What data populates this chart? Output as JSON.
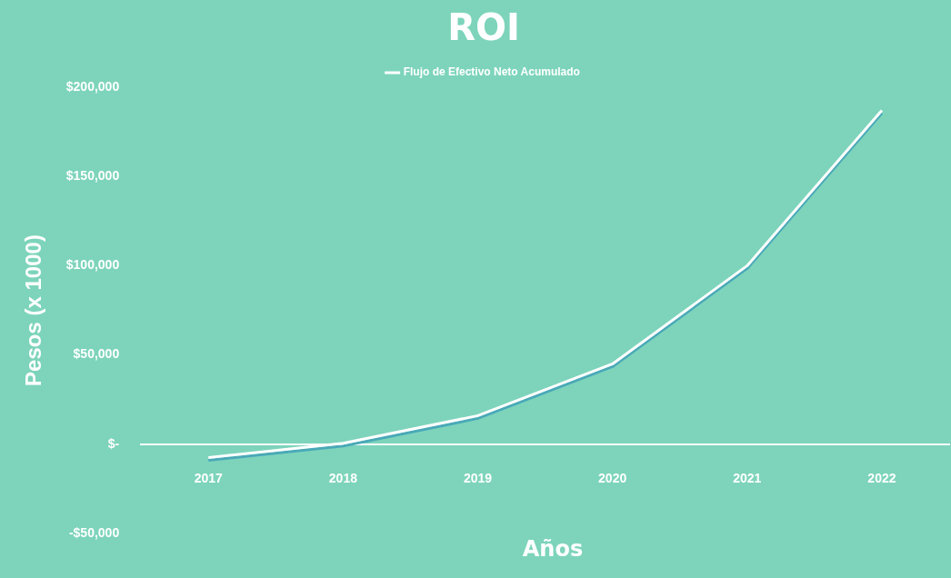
{
  "chart_data": {
    "type": "line",
    "title": "ROI",
    "xlabel": "Años",
    "ylabel": "Pesos (x 1000)",
    "categories": [
      "2017",
      "2018",
      "2019",
      "2020",
      "2021",
      "2022"
    ],
    "series": [
      {
        "name": "Flujo de Efectivo Neto Acumulado",
        "color": "#ffffff",
        "values": [
          -7500,
          500,
          16000,
          45000,
          100000,
          187000
        ]
      }
    ],
    "ylim": [
      -50000,
      200000
    ],
    "yticks": [
      {
        "value": -50000,
        "label": "-$50,000"
      },
      {
        "value": 0,
        "label": "$-"
      },
      {
        "value": 50000,
        "label": "$50,000"
      },
      {
        "value": 100000,
        "label": "$100,000"
      },
      {
        "value": 150000,
        "label": "$150,000"
      },
      {
        "value": 200000,
        "label": "$200,000"
      }
    ],
    "grid": false,
    "legend": "top",
    "marker": "none"
  }
}
